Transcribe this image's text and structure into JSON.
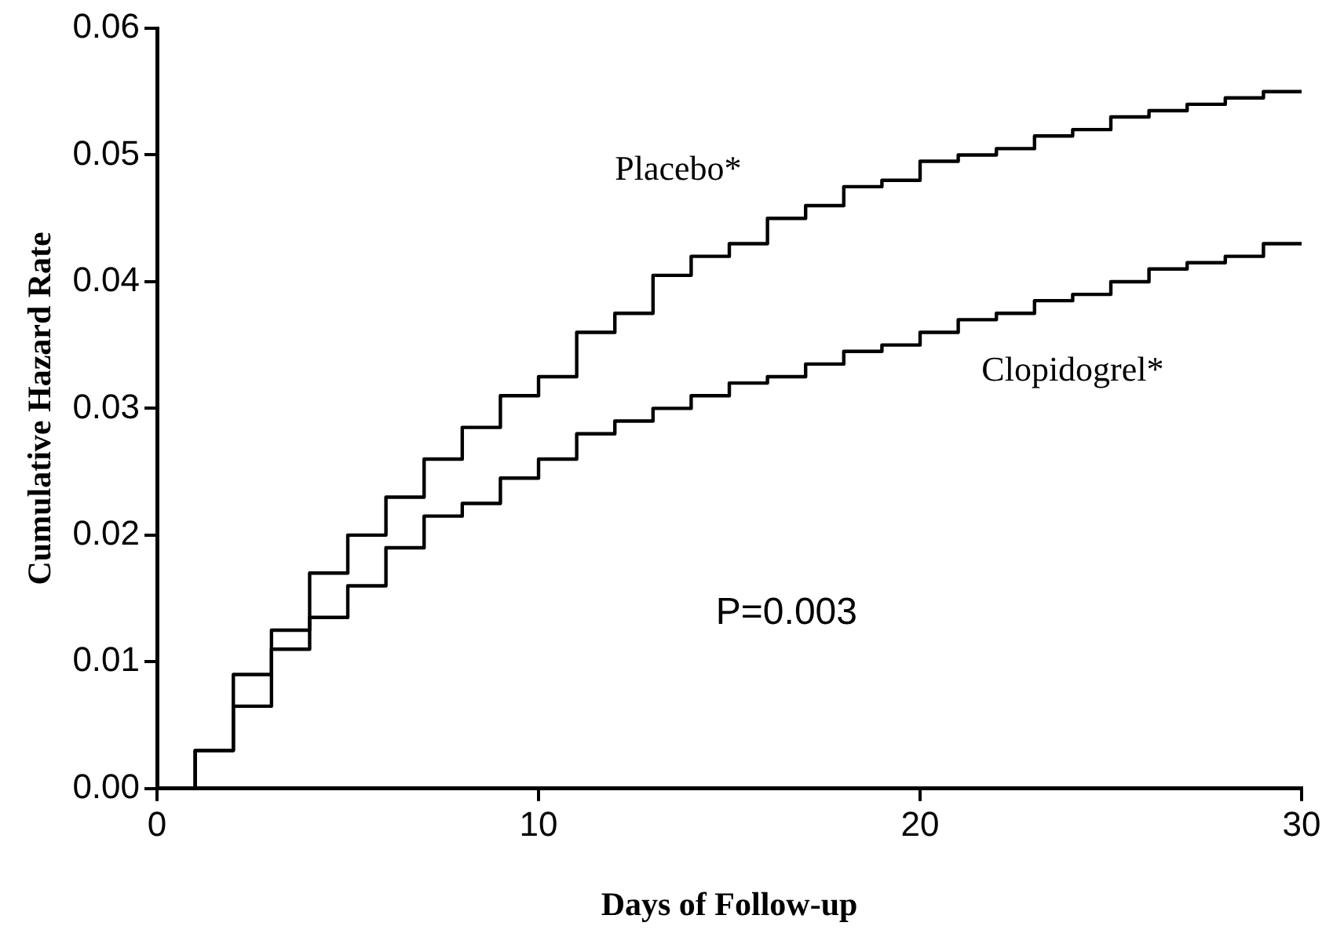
{
  "chart_data": {
    "type": "step",
    "xlabel": "Days of Follow-up",
    "ylabel": "Cumulative Hazard Rate",
    "x": [
      0,
      1,
      2,
      3,
      4,
      5,
      6,
      7,
      8,
      9,
      10,
      11,
      12,
      13,
      14,
      15,
      16,
      17,
      18,
      19,
      20,
      21,
      22,
      23,
      24,
      25,
      26,
      27,
      28,
      29,
      30
    ],
    "series": [
      {
        "name": "Placebo*",
        "color": "#000000",
        "values": [
          0,
          0.003,
          0.009,
          0.0125,
          0.017,
          0.02,
          0.023,
          0.026,
          0.0285,
          0.031,
          0.0325,
          0.036,
          0.0375,
          0.0405,
          0.042,
          0.043,
          0.045,
          0.046,
          0.0475,
          0.048,
          0.0495,
          0.05,
          0.0505,
          0.0515,
          0.052,
          0.053,
          0.0535,
          0.054,
          0.0545,
          0.055,
          0.055
        ]
      },
      {
        "name": "Clopidogrel*",
        "color": "#000000",
        "values": [
          0,
          0.003,
          0.0065,
          0.011,
          0.0135,
          0.016,
          0.019,
          0.0215,
          0.0225,
          0.0245,
          0.026,
          0.028,
          0.029,
          0.03,
          0.031,
          0.032,
          0.0325,
          0.0335,
          0.0345,
          0.035,
          0.036,
          0.037,
          0.0375,
          0.0385,
          0.039,
          0.04,
          0.041,
          0.0415,
          0.042,
          0.043,
          0.043
        ]
      }
    ],
    "annotations": [
      "P=0.003"
    ],
    "xlim": [
      0,
      30
    ],
    "xticks": [
      0,
      10,
      20,
      30
    ],
    "ylim": [
      0,
      0.06
    ],
    "yticks": [
      {
        "value": 0,
        "label": "0.00"
      },
      {
        "value": 0.01,
        "label": "0.01"
      },
      {
        "value": 0.02,
        "label": "0.02"
      },
      {
        "value": 0.03,
        "label": "0.03"
      },
      {
        "value": 0.04,
        "label": "0.04"
      },
      {
        "value": 0.05,
        "label": "0.05"
      },
      {
        "value": 0.06,
        "label": "0.06"
      }
    ],
    "grid": false,
    "legend": false,
    "marker": "none",
    "line_style": "solid"
  }
}
